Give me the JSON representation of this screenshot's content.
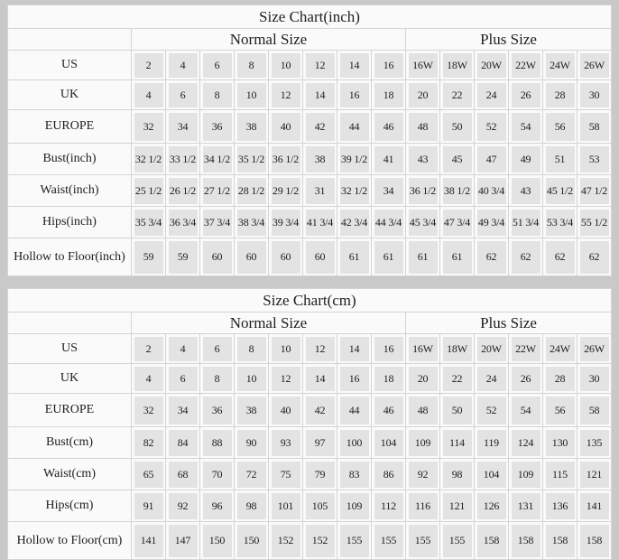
{
  "colors": {
    "page_background": "#c9c9c9",
    "table_background": "#fafafa",
    "data_cell_background": "#e3e3e3",
    "grid_line": "#d4d4d4",
    "text": "#1e1e1e"
  },
  "tables": [
    {
      "title": "Size Chart(inch)",
      "group_normal": "Normal Size",
      "group_plus": "Plus Size",
      "rows": [
        {
          "label": "US",
          "normal": [
            "2",
            "4",
            "6",
            "8",
            "10",
            "12",
            "14",
            "16"
          ],
          "plus": [
            "16W",
            "18W",
            "20W",
            "22W",
            "24W",
            "26W"
          ]
        },
        {
          "label": "UK",
          "normal": [
            "4",
            "6",
            "8",
            "10",
            "12",
            "14",
            "16",
            "18"
          ],
          "plus": [
            "20",
            "22",
            "24",
            "26",
            "28",
            "30"
          ]
        },
        {
          "label": "EUROPE",
          "normal": [
            "32",
            "34",
            "36",
            "38",
            "40",
            "42",
            "44",
            "46"
          ],
          "plus": [
            "48",
            "50",
            "52",
            "54",
            "56",
            "58"
          ]
        },
        {
          "label": "Bust(inch)",
          "normal": [
            "32 1/2",
            "33 1/2",
            "34 1/2",
            "35 1/2",
            "36 1/2",
            "38",
            "39 1/2",
            "41"
          ],
          "plus": [
            "43",
            "45",
            "47",
            "49",
            "51",
            "53"
          ]
        },
        {
          "label": "Waist(inch)",
          "normal": [
            "25 1/2",
            "26 1/2",
            "27 1/2",
            "28 1/2",
            "29 1/2",
            "31",
            "32 1/2",
            "34"
          ],
          "plus": [
            "36 1/2",
            "38 1/2",
            "40 3/4",
            "43",
            "45 1/2",
            "47 1/2"
          ]
        },
        {
          "label": "Hips(inch)",
          "normal": [
            "35 3/4",
            "36 3/4",
            "37 3/4",
            "38 3/4",
            "39 3/4",
            "41 3/4",
            "42 3/4",
            "44 3/4"
          ],
          "plus": [
            "45 3/4",
            "47 3/4",
            "49 3/4",
            "51 3/4",
            "53 3/4",
            "55 1/2"
          ]
        },
        {
          "label": "Hollow to Floor(inch)",
          "normal": [
            "59",
            "59",
            "60",
            "60",
            "60",
            "60",
            "61",
            "61"
          ],
          "plus": [
            "61",
            "61",
            "62",
            "62",
            "62",
            "62"
          ]
        }
      ]
    },
    {
      "title": "Size Chart(cm)",
      "group_normal": "Normal Size",
      "group_plus": "Plus Size",
      "rows": [
        {
          "label": "US",
          "normal": [
            "2",
            "4",
            "6",
            "8",
            "10",
            "12",
            "14",
            "16"
          ],
          "plus": [
            "16W",
            "18W",
            "20W",
            "22W",
            "24W",
            "26W"
          ]
        },
        {
          "label": "UK",
          "normal": [
            "4",
            "6",
            "8",
            "10",
            "12",
            "14",
            "16",
            "18"
          ],
          "plus": [
            "20",
            "22",
            "24",
            "26",
            "28",
            "30"
          ]
        },
        {
          "label": "EUROPE",
          "normal": [
            "32",
            "34",
            "36",
            "38",
            "40",
            "42",
            "44",
            "46"
          ],
          "plus": [
            "48",
            "50",
            "52",
            "54",
            "56",
            "58"
          ]
        },
        {
          "label": "Bust(cm)",
          "normal": [
            "82",
            "84",
            "88",
            "90",
            "93",
            "97",
            "100",
            "104"
          ],
          "plus": [
            "109",
            "114",
            "119",
            "124",
            "130",
            "135"
          ]
        },
        {
          "label": "Waist(cm)",
          "normal": [
            "65",
            "68",
            "70",
            "72",
            "75",
            "79",
            "83",
            "86"
          ],
          "plus": [
            "92",
            "98",
            "104",
            "109",
            "115",
            "121"
          ]
        },
        {
          "label": "Hips(cm)",
          "normal": [
            "91",
            "92",
            "96",
            "98",
            "101",
            "105",
            "109",
            "112"
          ],
          "plus": [
            "116",
            "121",
            "126",
            "131",
            "136",
            "141"
          ]
        },
        {
          "label": "Hollow to Floor(cm)",
          "normal": [
            "141",
            "147",
            "150",
            "150",
            "152",
            "152",
            "155",
            "155"
          ],
          "plus": [
            "155",
            "155",
            "158",
            "158",
            "158",
            "158"
          ]
        }
      ]
    }
  ]
}
